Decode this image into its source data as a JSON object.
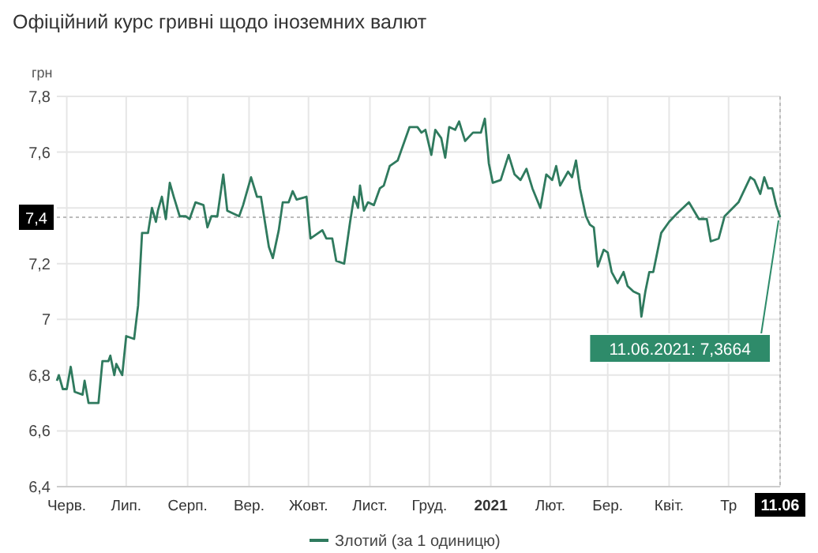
{
  "chart_data": {
    "type": "line",
    "title": "Офіційний курс гривні щодо іноземних валют",
    "ylabel": "грн",
    "xlim": [
      "2020-06-11",
      "2021-06-11"
    ],
    "xticks": [
      {
        "value": "2020-06-16",
        "label": "Черв."
      },
      {
        "value": "2020-07-16",
        "label": "Лип."
      },
      {
        "value": "2020-08-16",
        "label": "Серп."
      },
      {
        "value": "2020-09-16",
        "label": "Вер."
      },
      {
        "value": "2020-10-16",
        "label": "Жовт."
      },
      {
        "value": "2020-11-16",
        "label": "Лист."
      },
      {
        "value": "2020-12-16",
        "label": "Груд."
      },
      {
        "value": "2021-01-16",
        "label": "2021"
      },
      {
        "value": "2021-02-15",
        "label": "Лют."
      },
      {
        "value": "2021-03-16",
        "label": "Бер."
      },
      {
        "value": "2021-04-16",
        "label": "Квіт."
      },
      {
        "value": "2021-05-16",
        "label": "Тр"
      },
      {
        "value": "2021-06-11",
        "label": "11.06"
      }
    ],
    "ylim": [
      6.4,
      7.8
    ],
    "yticks": [
      {
        "value": 6.4,
        "label": "6,4"
      },
      {
        "value": 6.6,
        "label": "6,6"
      },
      {
        "value": 6.8,
        "label": "6,8"
      },
      7,
      {
        "value": 7.2,
        "label": "7,2"
      },
      {
        "value": 7.4,
        "label": null
      },
      {
        "value": 7.6,
        "label": "7,6"
      },
      {
        "value": 7.8,
        "label": "7,8"
      }
    ],
    "grid": true,
    "legend": "bottom",
    "marker": "none",
    "line_style": "solid",
    "ref_lines": [
      {
        "axis": "y",
        "value": 7.3664,
        "label": "7,4"
      },
      {
        "axis": "x",
        "value": "2021-06-11"
      }
    ],
    "annotations": [
      {
        "text": "11.06.2021: 7,3664",
        "x": "2021-06-11",
        "y": 7.3664
      }
    ],
    "series": [
      {
        "name": "Злотий (за 1 одиницю)",
        "color": "#2f7a5e",
        "x": [
          "2020-06-11",
          "2020-06-12",
          "2020-06-14",
          "2020-06-16",
          "2020-06-18",
          "2020-06-20",
          "2020-06-24",
          "2020-06-25",
          "2020-06-27",
          "2020-07-02",
          "2020-07-04",
          "2020-07-07",
          "2020-07-08",
          "2020-07-10",
          "2020-07-11",
          "2020-07-14",
          "2020-07-16",
          "2020-07-20",
          "2020-07-22",
          "2020-07-24",
          "2020-07-27",
          "2020-07-29",
          "2020-07-31",
          "2020-08-01",
          "2020-08-03",
          "2020-08-05",
          "2020-08-07",
          "2020-08-09",
          "2020-08-12",
          "2020-08-15",
          "2020-08-17",
          "2020-08-20",
          "2020-08-24",
          "2020-08-26",
          "2020-08-28",
          "2020-08-31",
          "2020-09-03",
          "2020-09-05",
          "2020-09-11",
          "2020-09-13",
          "2020-09-17",
          "2020-09-20",
          "2020-09-22",
          "2020-09-26",
          "2020-09-28",
          "2020-10-01",
          "2020-10-03",
          "2020-10-06",
          "2020-10-08",
          "2020-10-10",
          "2020-10-15",
          "2020-10-17",
          "2020-10-21",
          "2020-10-23",
          "2020-10-25",
          "2020-10-28",
          "2020-10-30",
          "2020-11-03",
          "2020-11-06",
          "2020-11-08",
          "2020-11-10",
          "2020-11-11",
          "2020-11-13",
          "2020-11-15",
          "2020-11-18",
          "2020-11-21",
          "2020-11-23",
          "2020-11-26",
          "2020-11-30",
          "2020-12-03",
          "2020-12-06",
          "2020-12-10",
          "2020-12-12",
          "2020-12-14",
          "2020-12-17",
          "2020-12-19",
          "2020-12-22",
          "2020-12-24",
          "2020-12-26",
          "2020-12-29",
          "2020-12-31",
          "2021-01-03",
          "2021-01-07",
          "2021-01-11",
          "2021-01-13",
          "2021-01-15",
          "2021-01-17",
          "2021-01-21",
          "2021-01-25",
          "2021-01-28",
          "2021-01-31",
          "2021-02-03",
          "2021-02-06",
          "2021-02-10",
          "2021-02-13",
          "2021-02-16",
          "2021-02-18",
          "2021-02-20",
          "2021-02-24",
          "2021-02-26",
          "2021-02-28",
          "2021-03-02",
          "2021-03-05",
          "2021-03-07",
          "2021-03-09",
          "2021-03-11",
          "2021-03-14",
          "2021-03-16",
          "2021-03-18",
          "2021-03-21",
          "2021-03-24",
          "2021-03-26",
          "2021-03-29",
          "2021-04-01",
          "2021-04-02",
          "2021-04-04",
          "2021-04-06",
          "2021-04-08",
          "2021-04-12",
          "2021-04-16",
          "2021-04-20",
          "2021-04-26",
          "2021-05-01",
          "2021-05-05",
          "2021-05-07",
          "2021-05-11",
          "2021-05-14",
          "2021-05-21",
          "2021-05-27",
          "2021-05-29",
          "2021-06-01",
          "2021-06-03",
          "2021-06-05",
          "2021-06-07",
          "2021-06-09",
          "2021-06-11"
        ],
        "values": [
          6.78,
          6.8,
          6.75,
          6.75,
          6.83,
          6.74,
          6.73,
          6.78,
          6.7,
          6.7,
          6.85,
          6.85,
          6.87,
          6.8,
          6.84,
          6.8,
          6.94,
          6.93,
          7.05,
          7.31,
          7.31,
          7.4,
          7.35,
          7.39,
          7.44,
          7.36,
          7.49,
          7.44,
          7.37,
          7.37,
          7.36,
          7.42,
          7.41,
          7.33,
          7.37,
          7.37,
          7.52,
          7.39,
          7.37,
          7.41,
          7.51,
          7.44,
          7.44,
          7.26,
          7.22,
          7.32,
          7.42,
          7.42,
          7.46,
          7.43,
          7.44,
          7.29,
          7.31,
          7.32,
          7.29,
          7.29,
          7.21,
          7.2,
          7.35,
          7.44,
          7.4,
          7.48,
          7.39,
          7.42,
          7.41,
          7.47,
          7.48,
          7.55,
          7.57,
          7.63,
          7.69,
          7.69,
          7.67,
          7.68,
          7.59,
          7.68,
          7.65,
          7.58,
          7.69,
          7.68,
          7.71,
          7.64,
          7.67,
          7.67,
          7.72,
          7.56,
          7.49,
          7.5,
          7.59,
          7.52,
          7.5,
          7.54,
          7.47,
          7.4,
          7.52,
          7.5,
          7.55,
          7.48,
          7.53,
          7.51,
          7.57,
          7.47,
          7.37,
          7.34,
          7.33,
          7.19,
          7.25,
          7.24,
          7.17,
          7.13,
          7.17,
          7.12,
          7.1,
          7.09,
          7.01,
          7.1,
          7.17,
          7.17,
          7.31,
          7.35,
          7.38,
          7.42,
          7.36,
          7.36,
          7.28,
          7.29,
          7.37,
          7.42,
          7.51,
          7.5,
          7.45,
          7.51,
          7.47,
          7.47,
          7.41,
          7.3664
        ]
      }
    ]
  }
}
